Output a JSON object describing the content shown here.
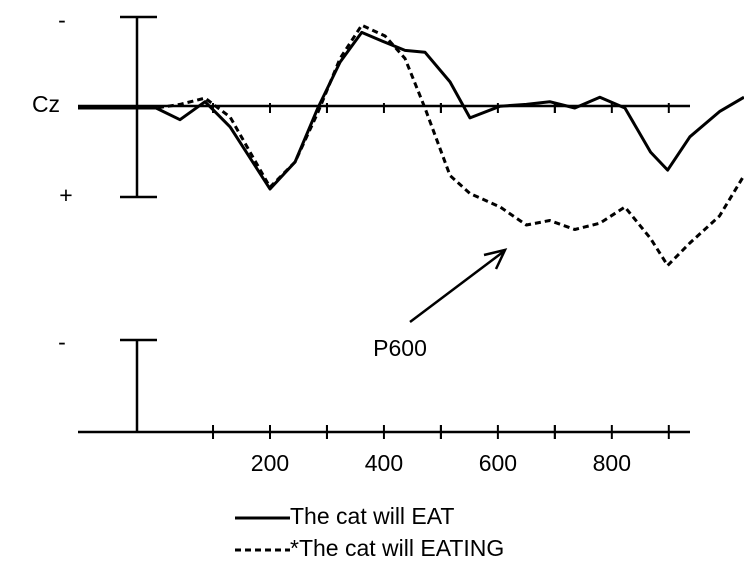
{
  "chart_data": {
    "type": "line",
    "y_inverted": true,
    "x": [
      -137,
      0,
      42,
      86,
      130,
      200,
      244,
      284,
      323,
      361,
      402,
      437,
      472,
      516,
      551,
      604,
      650,
      691,
      735,
      779,
      823,
      868,
      898,
      937,
      989,
      1032
    ],
    "series": [
      {
        "name": "The cat will EAT",
        "color": "#000000",
        "line_style": "solid",
        "values": [
          0,
          0,
          0.13,
          -0.07,
          0.21,
          0.9,
          0.6,
          0,
          -0.51,
          -0.84,
          -0.73,
          -0.64,
          -0.62,
          -0.29,
          0.11,
          -0.02,
          -0.04,
          -0.07,
          0,
          -0.12,
          0,
          0.49,
          0.69,
          0.32,
          0.04,
          -0.12
        ]
      },
      {
        "name": "*The cat will EATING",
        "color": "#000000",
        "line_style": "dashed",
        "values": [
          0,
          0,
          -0.04,
          -0.11,
          0.1,
          0.88,
          0.6,
          0.05,
          -0.55,
          -0.92,
          -0.8,
          -0.55,
          0,
          0.75,
          0.95,
          1.1,
          1.3,
          1.25,
          1.35,
          1.28,
          1.1,
          1.45,
          1.75,
          1.5,
          1.2,
          0.75
        ]
      }
    ],
    "xlim": [
      -137,
      1032
    ],
    "xticks": [
      200,
      400,
      600,
      800
    ],
    "ylim": [
      -1.2,
      1.8
    ],
    "channel_label": "Cz",
    "negative_label": "-",
    "positive_label": "+",
    "annotation": "P600"
  }
}
